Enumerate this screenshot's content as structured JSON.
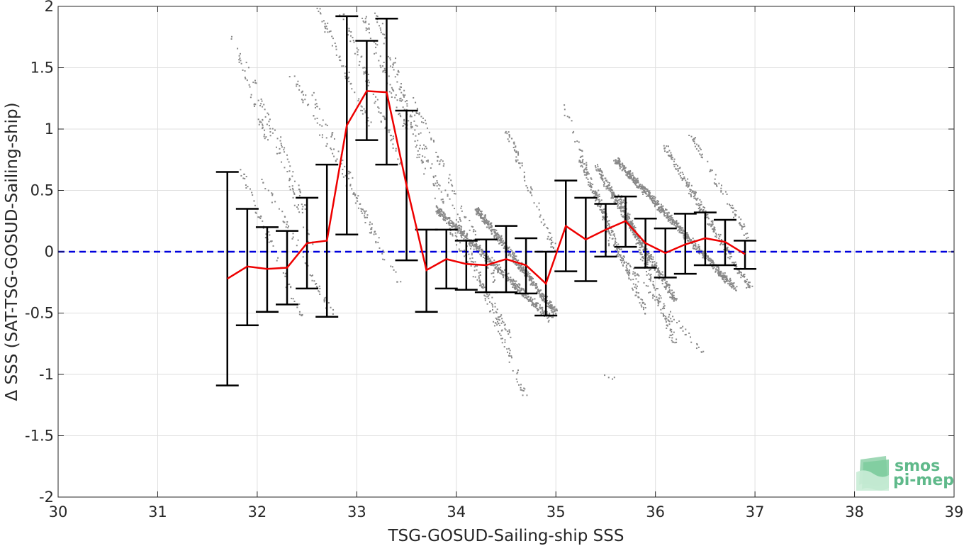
{
  "chart_data": {
    "type": "scatter",
    "xlabel": "TSG-GOSUD-Sailing-ship SSS",
    "ylabel": "Δ SSS (SAT-TSG-GOSUD-Sailing-ship)",
    "xlim": [
      30,
      39
    ],
    "ylim": [
      -2,
      2
    ],
    "xticks": [
      "30",
      "31",
      "32",
      "33",
      "34",
      "35",
      "36",
      "37",
      "38",
      "39"
    ],
    "yticks": [
      "-2",
      "-1.5",
      "-1",
      "-0.5",
      "0",
      "0.5",
      "1",
      "1.5",
      "2"
    ],
    "grid": true,
    "reference_line": {
      "y": 0,
      "style": "dashed",
      "color": "#0000dd"
    },
    "series": [
      {
        "type": "errorbar-line",
        "color": "#ee0000",
        "errorbar_color": "#000000",
        "x": [
          31.7,
          31.9,
          32.1,
          32.3,
          32.5,
          32.7,
          32.9,
          33.1,
          33.3,
          33.5,
          33.7,
          33.9,
          34.1,
          34.3,
          34.5,
          34.7,
          34.9,
          35.1,
          35.3,
          35.5,
          35.7,
          35.9,
          36.1,
          36.3,
          36.5,
          36.7,
          36.9
        ],
        "mean": [
          -0.22,
          -0.12,
          -0.14,
          -0.13,
          0.07,
          0.09,
          1.03,
          1.31,
          1.3,
          0.54,
          -0.15,
          -0.06,
          -0.1,
          -0.11,
          -0.06,
          -0.11,
          -0.26,
          0.21,
          0.1,
          0.18,
          0.25,
          0.07,
          -0.01,
          0.06,
          0.11,
          0.08,
          -0.02
        ],
        "upper": [
          0.65,
          0.35,
          0.2,
          0.17,
          0.44,
          0.71,
          1.92,
          1.72,
          1.9,
          1.15,
          0.18,
          0.18,
          0.09,
          0.1,
          0.21,
          0.11,
          0.0,
          0.58,
          0.44,
          0.39,
          0.45,
          0.27,
          0.19,
          0.31,
          0.32,
          0.26,
          0.09
        ],
        "lower": [
          -1.09,
          -0.6,
          -0.49,
          -0.43,
          -0.3,
          -0.53,
          0.14,
          0.91,
          0.71,
          -0.07,
          -0.49,
          -0.3,
          -0.31,
          -0.33,
          -0.33,
          -0.34,
          -0.52,
          -0.16,
          -0.24,
          -0.04,
          0.04,
          -0.13,
          -0.21,
          -0.18,
          -0.11,
          -0.11,
          -0.14
        ]
      }
    ],
    "scatter_color": "#888888",
    "scatter_clusters": [
      {
        "x": [
          31.75,
          32.1
        ],
        "y": [
          1.75,
          0.9
        ],
        "n": 40
      },
      {
        "x": [
          31.9,
          32.55
        ],
        "y": [
          1.55,
          0.05
        ],
        "n": 60
      },
      {
        "x": [
          31.85,
          32.45
        ],
        "y": [
          0.65,
          -0.55
        ],
        "n": 60
      },
      {
        "x": [
          32.05,
          32.75
        ],
        "y": [
          0.6,
          -0.5
        ],
        "n": 60
      },
      {
        "x": [
          32.2,
          32.5
        ],
        "y": [
          1.0,
          0.3
        ],
        "n": 30
      },
      {
        "x": [
          32.35,
          33.45
        ],
        "y": [
          1.45,
          -0.3
        ],
        "n": 90
      },
      {
        "x": [
          32.55,
          33.2
        ],
        "y": [
          1.3,
          0.1
        ],
        "n": 50
      },
      {
        "x": [
          32.6,
          33.15
        ],
        "y": [
          2.0,
          1.0
        ],
        "n": 60
      },
      {
        "x": [
          32.85,
          33.45
        ],
        "y": [
          1.95,
          0.7
        ],
        "n": 80
      },
      {
        "x": [
          33.05,
          33.5
        ],
        "y": [
          1.95,
          1.0
        ],
        "n": 60
      },
      {
        "x": [
          33.2,
          33.7
        ],
        "y": [
          1.95,
          0.6
        ],
        "n": 70
      },
      {
        "x": [
          33.35,
          33.95
        ],
        "y": [
          1.6,
          0.2
        ],
        "n": 60
      },
      {
        "x": [
          33.55,
          34.4
        ],
        "y": [
          1.25,
          -0.25
        ],
        "n": 80
      },
      {
        "x": [
          33.75,
          34.55
        ],
        "y": [
          0.45,
          -0.7
        ],
        "n": 80
      },
      {
        "x": [
          33.9,
          34.7
        ],
        "y": [
          0.5,
          -1.2
        ],
        "n": 120
      },
      {
        "x": [
          33.8,
          34.95
        ],
        "y": [
          0.35,
          -0.55
        ],
        "n": 500
      },
      {
        "x": [
          34.2,
          35.0
        ],
        "y": [
          0.35,
          -0.5
        ],
        "n": 450
      },
      {
        "x": [
          34.5,
          35.0
        ],
        "y": [
          1.0,
          0.0
        ],
        "n": 80
      },
      {
        "x": [
          35.05,
          35.6
        ],
        "y": [
          1.25,
          0.05
        ],
        "n": 60
      },
      {
        "x": [
          35.25,
          35.9
        ],
        "y": [
          0.75,
          -0.5
        ],
        "n": 200
      },
      {
        "x": [
          35.4,
          36.2
        ],
        "y": [
          0.7,
          -0.4
        ],
        "n": 400
      },
      {
        "x": [
          35.65,
          36.2
        ],
        "y": [
          0.45,
          -0.75
        ],
        "n": 150
      },
      {
        "x": [
          35.6,
          36.8
        ],
        "y": [
          0.75,
          -0.3
        ],
        "n": 650
      },
      {
        "x": [
          35.5,
          36.5
        ],
        "y": [
          0.1,
          -0.85
        ],
        "n": 80
      },
      {
        "x": [
          36.1,
          36.95
        ],
        "y": [
          0.85,
          -0.3
        ],
        "n": 250
      },
      {
        "x": [
          36.35,
          36.95
        ],
        "y": [
          0.95,
          0.1
        ],
        "n": 80
      },
      {
        "x": [
          35.5,
          35.6
        ],
        "y": [
          -1.0,
          -1.05
        ],
        "n": 4
      }
    ]
  },
  "logo": {
    "line1": "smos",
    "line2": "pi-mep",
    "color": "#5fb98a"
  }
}
